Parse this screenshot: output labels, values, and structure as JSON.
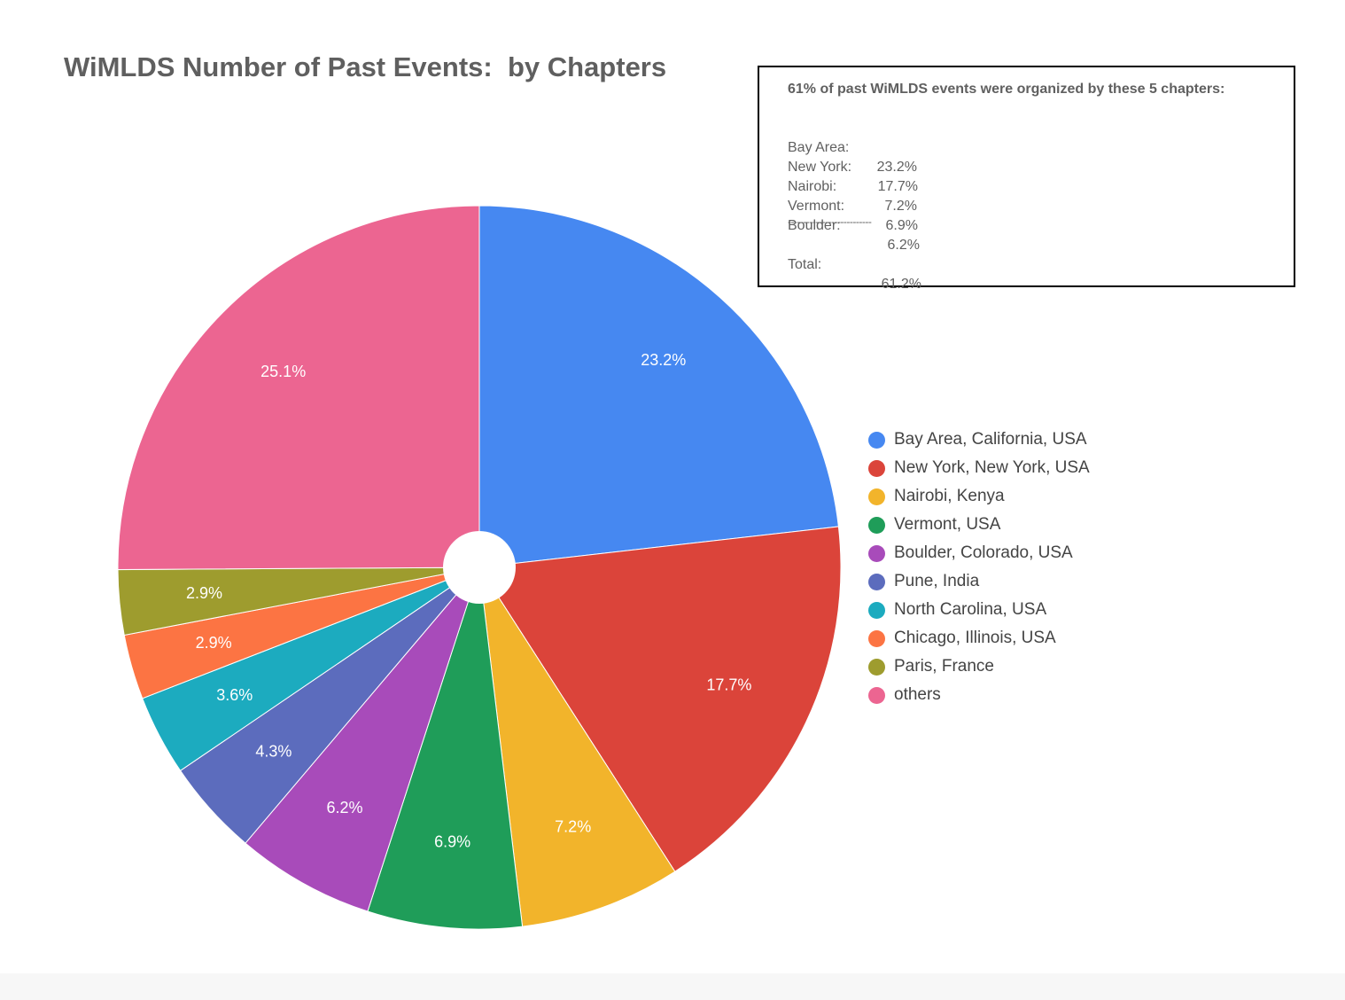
{
  "chart_data": {
    "type": "pie",
    "title": "WiMLDS Number of Past Events:  by Chapters",
    "categories": [
      "Bay Area, California, USA",
      "New York, New York, USA",
      "Nairobi, Kenya",
      "Vermont, USA",
      "Boulder, Colorado, USA",
      "Pune, India",
      "North Carolina, USA",
      "Chicago, Illinois, USA",
      "Paris, France",
      "others"
    ],
    "values": [
      23.2,
      17.7,
      7.2,
      6.9,
      6.2,
      4.3,
      3.6,
      2.9,
      2.9,
      25.1
    ],
    "data_labels": [
      "23.2%",
      "17.7%",
      "7.2%",
      "6.9%",
      "6.2%",
      "4.3%",
      "3.6%",
      "2.9%",
      "2.9%",
      "25.1%"
    ],
    "colors": [
      "#4688f1",
      "#db443a",
      "#f2b42b",
      "#1f9d59",
      "#a84bba",
      "#5c6cbd",
      "#1cabbf",
      "#fc7443",
      "#9e9c2e",
      "#ec6591"
    ],
    "legend_position": "right",
    "start": "12 o'clock",
    "direction": "clockwise",
    "center_hole": true
  },
  "annotation": {
    "headline": "61% of past WiMLDS events were organized by these 5 chapters:",
    "rows": [
      {
        "label": "Bay Area:",
        "value": "23.2%"
      },
      {
        "label": "New York:",
        "value": "17.7%"
      },
      {
        "label": "Nairobi:",
        "value": "7.2%"
      },
      {
        "label": "Vermont:",
        "value": "6.9%"
      },
      {
        "label": "Boulder:",
        "value": "6.2%"
      }
    ],
    "rule": "---------------------------",
    "total_label": "Total:",
    "total_value": "61.2%"
  }
}
